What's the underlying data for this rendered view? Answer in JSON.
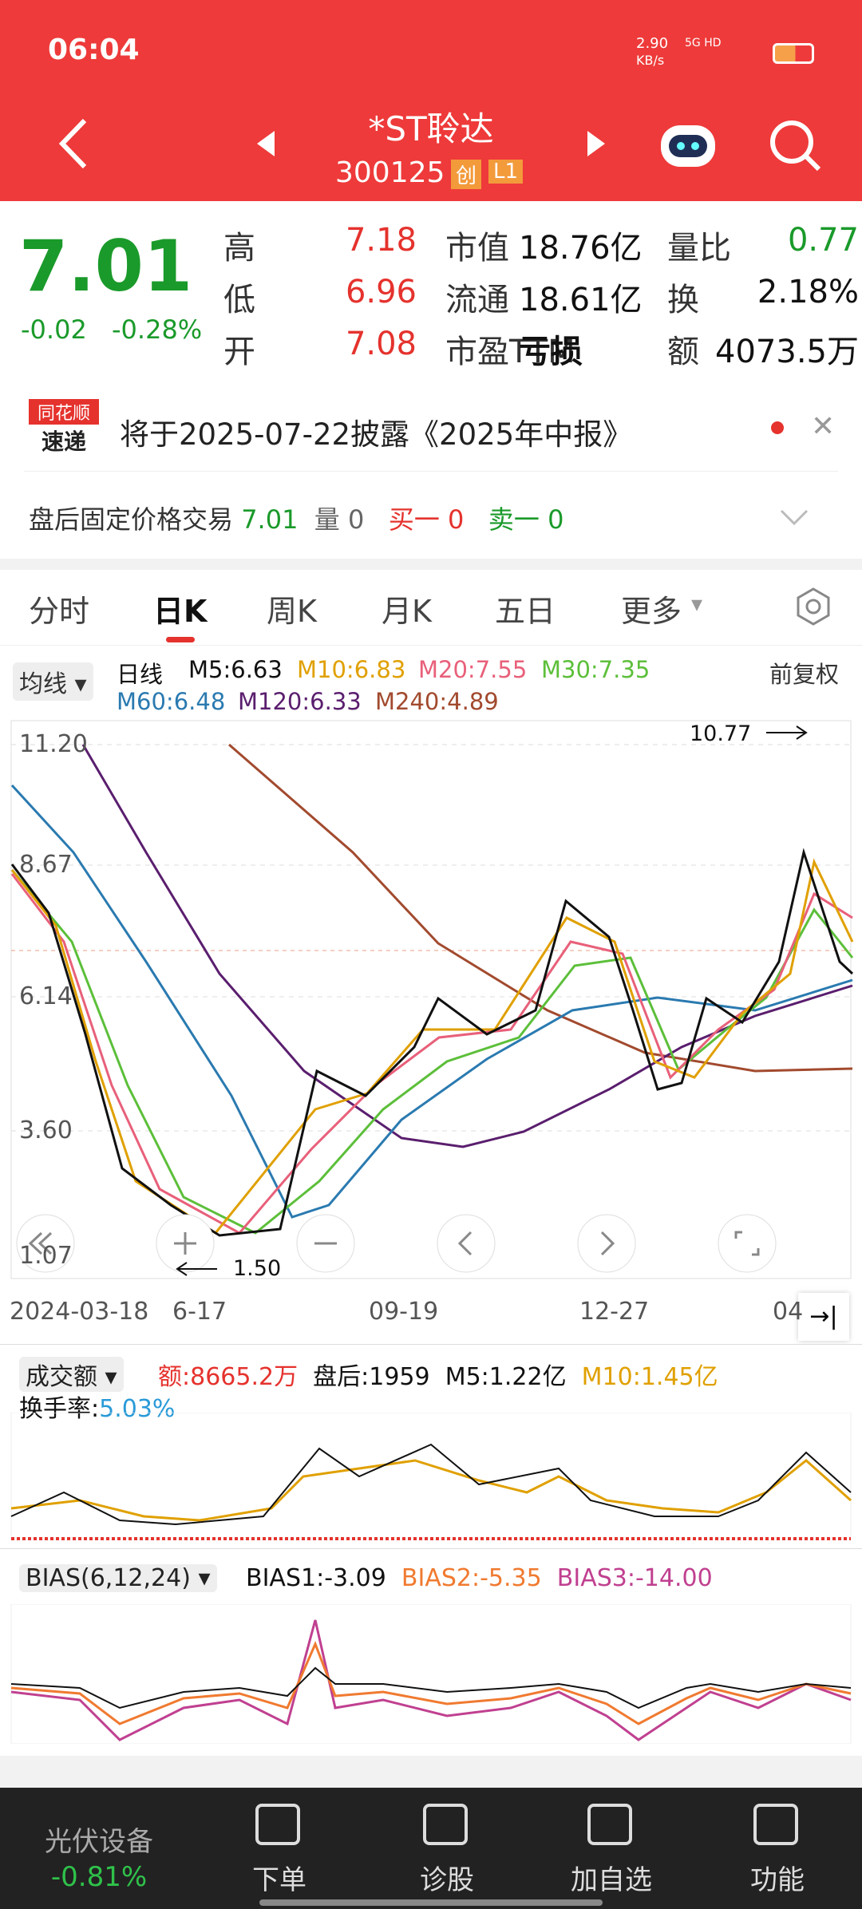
{
  "status": {
    "time": "06:04",
    "speed": "2.90",
    "speed_unit": "KB/s",
    "net": "5G HD"
  },
  "header": {
    "name": "*ST聆达",
    "code": "300125",
    "badge1": "创",
    "badge2": "L1"
  },
  "quote": {
    "price": "7.01",
    "change": "-0.02",
    "pct": "-0.28%",
    "rows": [
      [
        "高",
        "7.18",
        "市值",
        "18.76亿",
        "量比",
        "0.77"
      ],
      [
        "低",
        "6.96",
        "流通",
        "18.61亿",
        "换",
        "2.18%"
      ],
      [
        "开",
        "7.08",
        "市盈TTM",
        "亏损",
        "额",
        "4073.5万"
      ]
    ]
  },
  "news": {
    "logo1": "同花顺",
    "logo2": "速递",
    "text": "将于2025-07-22披露《2025年中报》"
  },
  "after": {
    "label": "盘后固定价格交易",
    "price": "7.01",
    "vol_label": "量",
    "vol": "0",
    "buy_label": "买一",
    "buy": "0",
    "sell_label": "卖一",
    "sell": "0"
  },
  "tabs": [
    "分时",
    "日K",
    "周K",
    "月K",
    "五日",
    "更多"
  ],
  "ma": {
    "selector": "均线",
    "label": "日线",
    "items": [
      {
        "text": "M5:6.63",
        "color": "#111"
      },
      {
        "text": "M10:6.83",
        "color": "#e0a000"
      },
      {
        "text": "M20:7.55",
        "color": "#e8607a"
      },
      {
        "text": "M30:7.35",
        "color": "#5cbf3a"
      },
      {
        "text": "M60:6.48",
        "color": "#2a7ab0"
      },
      {
        "text": "M120:6.33",
        "color": "#5a1e6e"
      },
      {
        "text": "M240:4.89",
        "color": "#a24a2e"
      }
    ],
    "adjust": "前复权"
  },
  "price_axis": [
    "11.20",
    "8.67",
    "6.14",
    "3.60",
    "1.07"
  ],
  "annotations": {
    "high": "10.77",
    "low": "1.50"
  },
  "dates": [
    "2024-03-18",
    "6-17",
    "09-19",
    "12-27",
    "04"
  ],
  "volume": {
    "selector": "成交额",
    "amount": "额:8665.2万",
    "after": "盘后:1959",
    "m5": "M5:1.22亿",
    "m10": "M10:1.45亿",
    "turnover_label": "换手率:",
    "turnover": "5.03%"
  },
  "bias": {
    "selector": "BIAS(6,12,24)",
    "b1": "BIAS1:-3.09",
    "b2": "BIAS2:-5.35",
    "b3": "BIAS3:-14.00"
  },
  "nav": {
    "sector": "光伏设备",
    "sector_pct": "-0.81%",
    "items": [
      "下单",
      "诊股",
      "加自选",
      "功能"
    ]
  }
}
